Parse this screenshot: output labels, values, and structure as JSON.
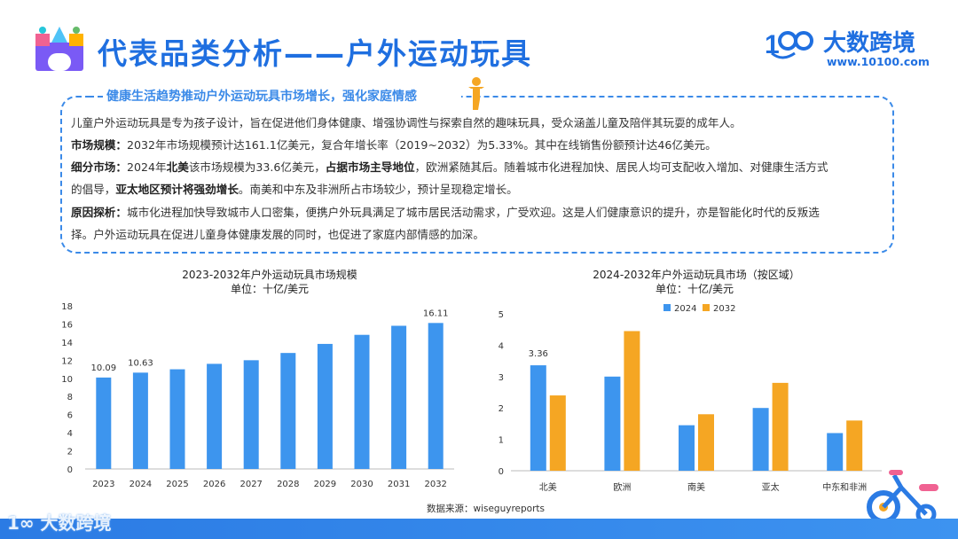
{
  "header": {
    "title": "代表品类分析——户外运动玩具",
    "brand_name": "大数跨境",
    "brand_url": "www.10100.com",
    "brand_logo_text": "100"
  },
  "card": {
    "title": "健康生活趋势推动户外运动玩具市场增长，强化家庭情感",
    "intro": "儿童户外运动玩具是专为孩子设计，旨在促进他们身体健康、增强协调性与探索自然的趣味玩具，受众涵盖儿童及陪伴其玩耍的成年人。",
    "market_size_label": "市场规模：",
    "market_size_text": "2032年市场规模预计达161.1亿美元，复合年增长率（2019~2032）为5.33%。其中在线销售份额预计达46亿美元。",
    "segment_label": "细分市场：",
    "segment_text_1": "2024年",
    "segment_bold_1": "北美",
    "segment_text_2": "该市场规模为33.6亿美元，",
    "segment_bold_2": "占据市场主导地位",
    "segment_text_3": "，欧洲紧随其后。随着城市化进程加快、居民人均可支配收入增加、对健康生活方式",
    "segment_text_4": "的倡导，",
    "segment_bold_3": "亚太地区预计将强劲增长",
    "segment_text_5": "。南美和中东及非洲所占市场较少，预计呈现稳定增长。",
    "reason_label": "原因探析：",
    "reason_text_1": "城市化进程加快导致城市人口密集，便携户外玩具满足了城市居民活动需求，广受欢迎。这是人们健康意识的提升，亦是智能化时代的反叛选",
    "reason_text_2": "择。户外运动玩具在促进儿童身体健康发展的同时，也促进了家庭内部情感的加深。"
  },
  "source": "数据来源：wiseguyreports",
  "footer_brand": "大数跨境",
  "colors": {
    "primary": "#1f6fe0",
    "bar_blue": "#3d95ee",
    "bar_orange": "#f5a623"
  },
  "chart_data": [
    {
      "type": "bar",
      "title": "2023-2032年户外运动玩具市场规模",
      "subtitle": "单位：十亿/美元",
      "categories": [
        "2023",
        "2024",
        "2025",
        "2026",
        "2027",
        "2028",
        "2029",
        "2030",
        "2031",
        "2032"
      ],
      "values": [
        10.09,
        10.63,
        11.0,
        11.6,
        12.0,
        12.8,
        13.8,
        14.8,
        15.8,
        16.11
      ],
      "data_labels": {
        "0": "10.09",
        "1": "10.63",
        "9": "16.11"
      },
      "ylim": [
        0,
        18
      ],
      "yticks": [
        0,
        2,
        4,
        6,
        8,
        10,
        12,
        14,
        16,
        18
      ],
      "grid": false
    },
    {
      "type": "bar",
      "title": "2024-2032年户外运动玩具市场（按区域）",
      "subtitle": "单位：十亿/美元",
      "categories": [
        "北美",
        "欧洲",
        "南美",
        "亚太",
        "中东和非洲"
      ],
      "series": [
        {
          "name": "2024",
          "values": [
            3.36,
            3.0,
            1.45,
            2.0,
            1.2
          ]
        },
        {
          "name": "2032",
          "values": [
            2.4,
            4.45,
            1.8,
            2.8,
            1.6
          ]
        }
      ],
      "data_labels": {
        "0": "3.36"
      },
      "ylim": [
        0,
        5
      ],
      "yticks": [
        0,
        1,
        2,
        3,
        4,
        5
      ],
      "legend": "top-center",
      "grid": false
    }
  ]
}
